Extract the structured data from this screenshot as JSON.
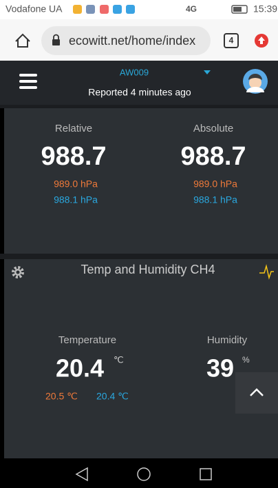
{
  "status_bar": {
    "carrier": "Vodafone UA",
    "network": "4G",
    "time": "15:39"
  },
  "browser": {
    "url": "ecowitt.net/home/index",
    "tab_count": "4"
  },
  "header": {
    "device": "AW009",
    "reported": "Reported 4 minutes ago"
  },
  "pressure_card": {
    "relative": {
      "label": "Relative",
      "value": "988.7",
      "high": "989.0 hPa",
      "low": "988.1 hPa"
    },
    "absolute": {
      "label": "Absolute",
      "value": "988.7",
      "high": "989.0 hPa",
      "low": "988.1 hPa"
    }
  },
  "temp_card": {
    "title": "Temp and Humidity CH4",
    "temperature": {
      "label": "Temperature",
      "value": "20.4",
      "unit": "℃",
      "high": "20.5 ℃",
      "low": "20.4 ℃"
    },
    "humidity": {
      "label": "Humidity",
      "value": "39",
      "unit": "%"
    }
  }
}
